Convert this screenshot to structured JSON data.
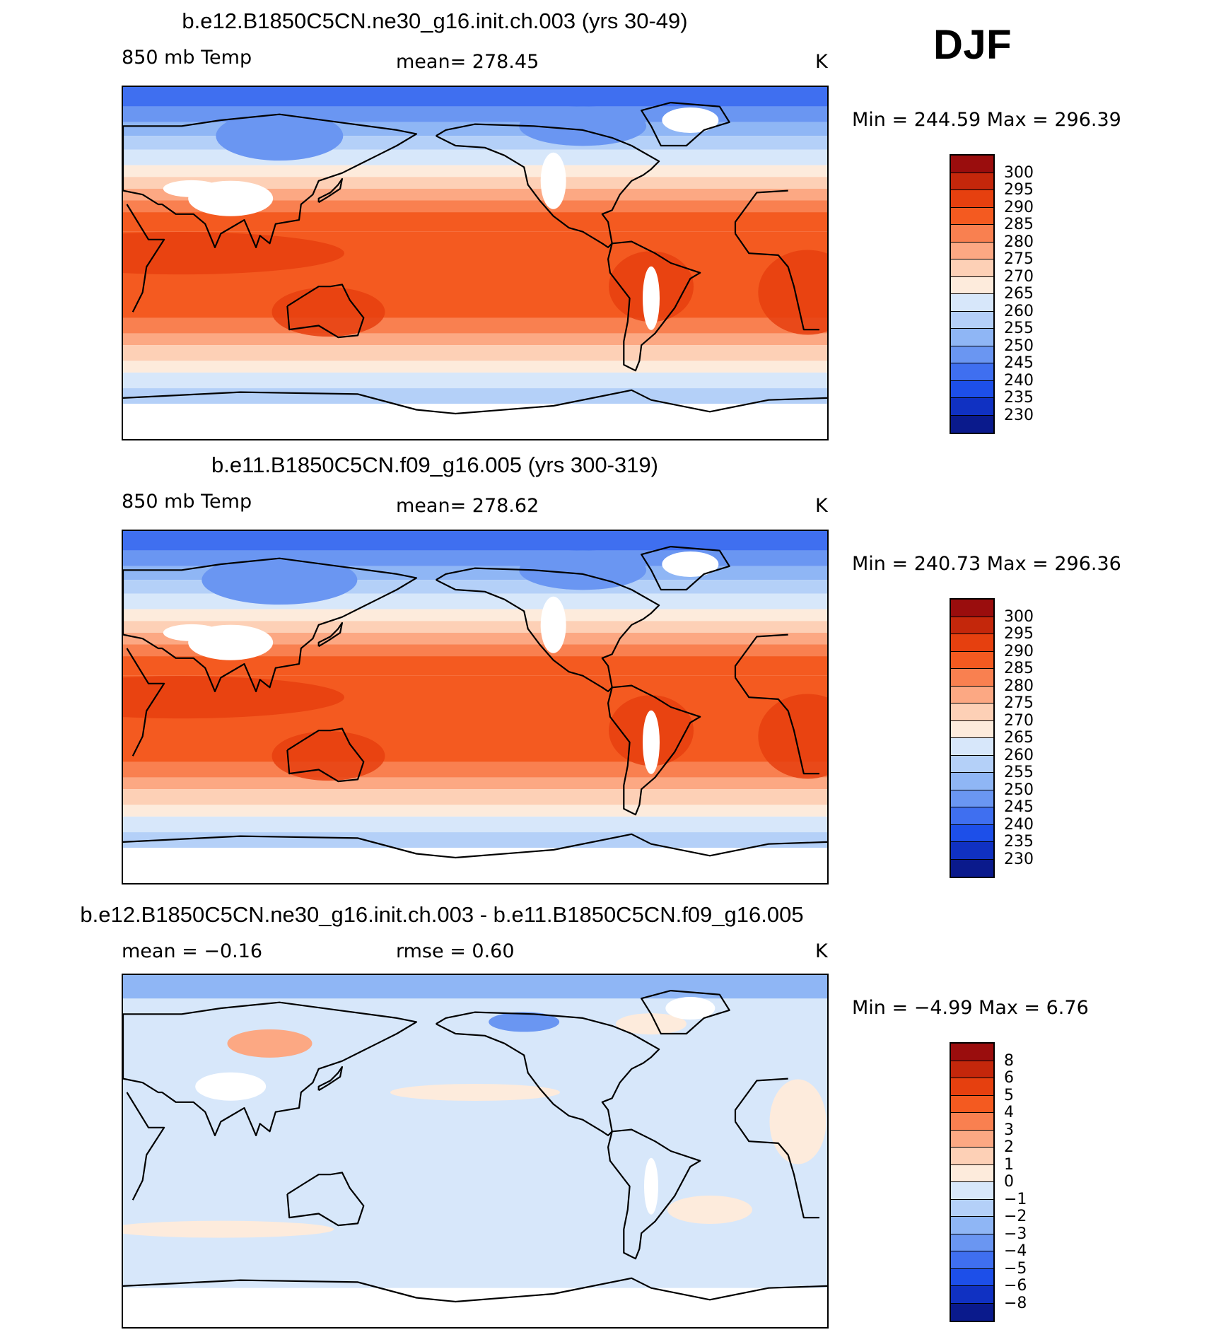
{
  "season": "DJF",
  "panels": [
    {
      "title": "b.e12.B1850C5CN.ne30_g16.init.ch.003 (yrs 30-49)",
      "left_label": "850 mb Temp",
      "center_label": "mean= 278.45",
      "units": "K",
      "minmax": "Min = 244.59 Max = 296.39",
      "colorbar_labels": [
        "300",
        "295",
        "290",
        "285",
        "280",
        "275",
        "270",
        "265",
        "260",
        "255",
        "250",
        "245",
        "240",
        "235",
        "230"
      ],
      "colorbar_colors": [
        "#9a0d0d",
        "#c4270b",
        "#e6400f",
        "#f45a20",
        "#f98050",
        "#fca883",
        "#fdd0b6",
        "#fdebdc",
        "#d7e7fa",
        "#b4d0f8",
        "#8fb6f5",
        "#6a96f2",
        "#3f6ff0",
        "#1d4fe9",
        "#1031c2",
        "#0a1a8c"
      ],
      "map_kind": "absolute"
    },
    {
      "title": "b.e11.B1850C5CN.f09_g16.005 (yrs 300-319)",
      "left_label": "850 mb Temp",
      "center_label": "mean= 278.62",
      "units": "K",
      "minmax": "Min = 240.73 Max = 296.36",
      "colorbar_labels": [
        "300",
        "295",
        "290",
        "285",
        "280",
        "275",
        "270",
        "265",
        "260",
        "255",
        "250",
        "245",
        "240",
        "235",
        "230"
      ],
      "colorbar_colors": [
        "#9a0d0d",
        "#c4270b",
        "#e6400f",
        "#f45a20",
        "#f98050",
        "#fca883",
        "#fdd0b6",
        "#fdebdc",
        "#d7e7fa",
        "#b4d0f8",
        "#8fb6f5",
        "#6a96f2",
        "#3f6ff0",
        "#1d4fe9",
        "#1031c2",
        "#0a1a8c"
      ],
      "map_kind": "absolute"
    },
    {
      "title": "b.e12.B1850C5CN.ne30_g16.init.ch.003 - b.e11.B1850C5CN.f09_g16.005",
      "left_label": "mean = −0.16",
      "center_label": "rmse = 0.60",
      "units": "K",
      "minmax": "Min = −4.99 Max = 6.76",
      "colorbar_labels": [
        "8",
        "6",
        "5",
        "4",
        "3",
        "2",
        "1",
        "0",
        "−1",
        "−2",
        "−3",
        "−4",
        "−5",
        "−6",
        "−8"
      ],
      "colorbar_colors": [
        "#9a0d0d",
        "#c4270b",
        "#e6400f",
        "#f45a20",
        "#f98050",
        "#fca883",
        "#fdd0b6",
        "#fdebdc",
        "#d7e7fa",
        "#b4d0f8",
        "#8fb6f5",
        "#6a96f2",
        "#3f6ff0",
        "#1d4fe9",
        "#1031c2",
        "#0a1a8c"
      ],
      "map_kind": "difference"
    }
  ],
  "chart_data": [
    {
      "type": "heatmap",
      "title": "b.e12.B1850C5CN.ne30_g16.init.ch.003 (yrs 30-49)",
      "variable": "850 mb Temp",
      "units": "K",
      "mean": 278.45,
      "min": 244.59,
      "max": 296.39,
      "contour_levels": [
        230,
        235,
        240,
        245,
        250,
        255,
        260,
        265,
        270,
        275,
        280,
        285,
        290,
        295,
        300
      ]
    },
    {
      "type": "heatmap",
      "title": "b.e11.B1850C5CN.f09_g16.005 (yrs 300-319)",
      "variable": "850 mb Temp",
      "units": "K",
      "mean": 278.62,
      "min": 240.73,
      "max": 296.36,
      "contour_levels": [
        230,
        235,
        240,
        245,
        250,
        255,
        260,
        265,
        270,
        275,
        280,
        285,
        290,
        295,
        300
      ]
    },
    {
      "type": "heatmap",
      "title": "b.e12.B1850C5CN.ne30_g16.init.ch.003 - b.e11.B1850C5CN.f09_g16.005",
      "units": "K",
      "mean": -0.16,
      "rmse": 0.6,
      "min": -4.99,
      "max": 6.76,
      "contour_levels": [
        -8,
        -6,
        -5,
        -4,
        -3,
        -2,
        -1,
        0,
        1,
        2,
        3,
        4,
        5,
        6,
        8
      ]
    }
  ]
}
